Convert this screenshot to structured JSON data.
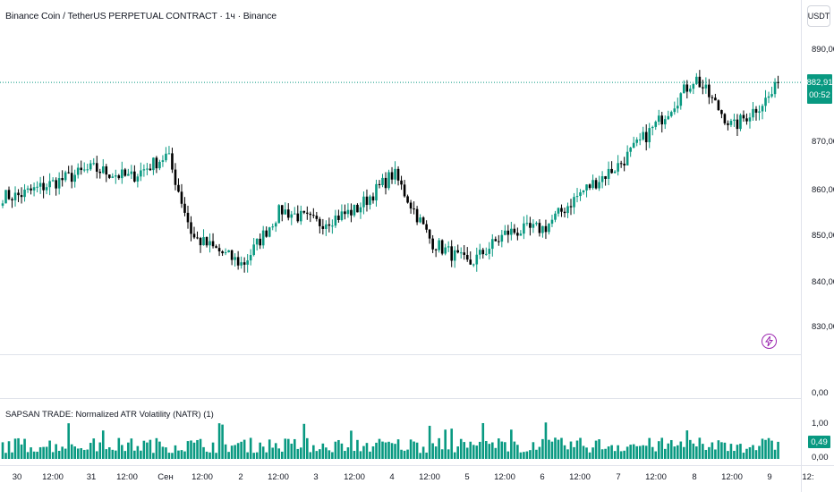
{
  "header": {
    "title": "Binance Coin / TetherUS PERPETUAL CONTRACT · 1ч · Binance",
    "currency_button": "USDT"
  },
  "price_axis": {
    "labels": [
      "890,00",
      "870,00",
      "860,00",
      "850,00",
      "840,00",
      "830,00"
    ],
    "current_price": "882,91",
    "countdown": "00:52"
  },
  "indicator": {
    "title": "SAPSAN TRADE: Normalized ATR Volatility (NATR) (1)",
    "axis_labels": [
      "0,00",
      "1,00",
      "0,00"
    ],
    "current_value": "0,49"
  },
  "time_axis": {
    "labels": [
      "30",
      "12:00",
      "31",
      "12:00",
      "Сен",
      "12:00",
      "2",
      "12:00",
      "3",
      "12:00",
      "4",
      "12:00",
      "5",
      "12:00",
      "6",
      "12:00",
      "7",
      "12:00",
      "8",
      "12:00",
      "9",
      "12:"
    ]
  },
  "icons": {
    "alert": "lightning-icon"
  },
  "colors": {
    "up": "#089981",
    "down": "#000000",
    "price_line": "#089981",
    "lightning": "#9c27b0"
  },
  "chart_data": [
    {
      "type": "candlestick",
      "title": "Binance Coin / TetherUS PERPETUAL CONTRACT · 1ч · Binance",
      "ylabel": "USDT",
      "ylim": [
        825,
        895
      ],
      "x_range": [
        "30",
        "9"
      ],
      "keypoints": [
        {
          "x": "30 00:00",
          "y": 858
        },
        {
          "x": "31 00:00",
          "y": 864
        },
        {
          "x": "31 12:00",
          "y": 862
        },
        {
          "x": "Сен 00:00",
          "y": 867
        },
        {
          "x": "Сен 08:00",
          "y": 849
        },
        {
          "x": "2 00:00",
          "y": 843
        },
        {
          "x": "2 12:00",
          "y": 855
        },
        {
          "x": "3 00:00",
          "y": 852
        },
        {
          "x": "3 12:00",
          "y": 855
        },
        {
          "x": "4 00:00",
          "y": 863
        },
        {
          "x": "4 12:00",
          "y": 848
        },
        {
          "x": "5 00:00",
          "y": 843
        },
        {
          "x": "5 12:00",
          "y": 850
        },
        {
          "x": "6 00:00",
          "y": 851
        },
        {
          "x": "6 12:00",
          "y": 859
        },
        {
          "x": "7 00:00",
          "y": 865
        },
        {
          "x": "7 12:00",
          "y": 874
        },
        {
          "x": "8 00:00",
          "y": 884
        },
        {
          "x": "8 12:00",
          "y": 873
        },
        {
          "x": "9 00:00",
          "y": 880
        },
        {
          "x": "9 03:00",
          "y": 882.91
        }
      ],
      "last_price": 882.91,
      "grid": false
    },
    {
      "type": "bar",
      "title": "SAPSAN TRADE: Normalized ATR Volatility (NATR) (1)",
      "ylim": [
        0,
        1.0
      ],
      "typical_value": 0.49,
      "max_value": 1.0,
      "last_value": 0.49
    }
  ]
}
